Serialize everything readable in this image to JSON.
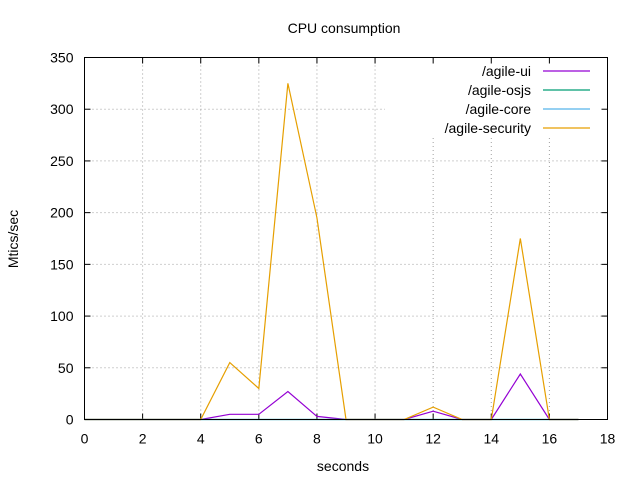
{
  "chart_data": {
    "type": "line",
    "title": "CPU consumption",
    "xlabel": "seconds",
    "ylabel": "Mtics/sec",
    "xlim": [
      0,
      18
    ],
    "ylim": [
      0,
      350
    ],
    "xticks": [
      0,
      2,
      4,
      6,
      8,
      10,
      12,
      14,
      16,
      18
    ],
    "yticks": [
      0,
      50,
      100,
      150,
      200,
      250,
      300,
      350
    ],
    "grid": true,
    "legend_position": "top-right",
    "x": [
      0,
      1,
      2,
      3,
      4,
      5,
      6,
      7,
      8,
      9,
      10,
      11,
      12,
      13,
      14,
      15,
      16,
      17
    ],
    "series": [
      {
        "name": "/agile-ui",
        "color": "#9400d3",
        "values": [
          0,
          0,
          0,
          0,
          0,
          5,
          5,
          27,
          3,
          0,
          0,
          0,
          8,
          0,
          0,
          44,
          0,
          0
        ]
      },
      {
        "name": "/agile-osjs",
        "color": "#009e73",
        "values": [
          0,
          0,
          0,
          0,
          0,
          0,
          0,
          0,
          0,
          0,
          0,
          0,
          0,
          0,
          0,
          0,
          0,
          0
        ]
      },
      {
        "name": "/agile-core",
        "color": "#56b4e9",
        "values": [
          0,
          0,
          0,
          0,
          0,
          0,
          0,
          0,
          0,
          0,
          0,
          0,
          0,
          0,
          0,
          0,
          0,
          0
        ]
      },
      {
        "name": "/agile-security",
        "color": "#e69f00",
        "values": [
          0,
          0,
          0,
          0,
          0,
          55,
          30,
          325,
          195,
          0,
          0,
          0,
          12,
          0,
          0,
          175,
          0,
          0
        ]
      }
    ]
  }
}
